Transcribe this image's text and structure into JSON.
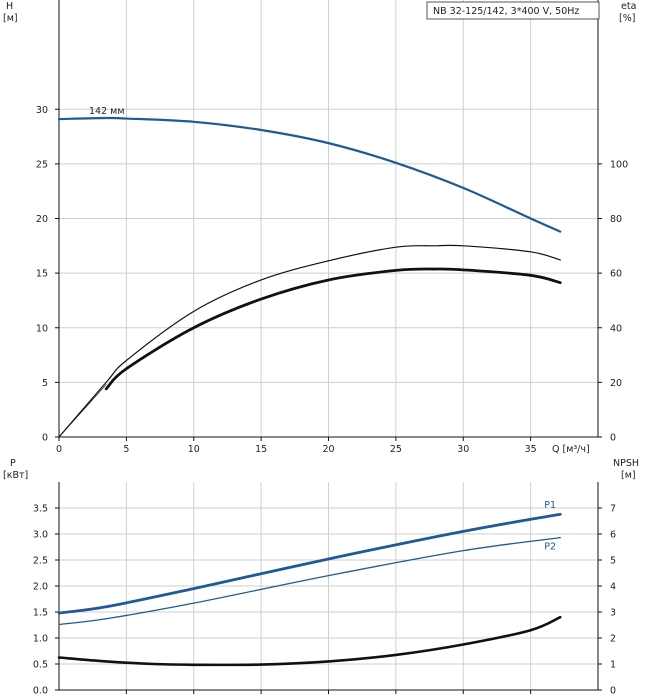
{
  "chart_data": [
    {
      "type": "line",
      "title": "NB 32-125/142, 3*400 V, 50Hz",
      "xlabel": "Q [м³/ч]",
      "xlim": [
        0,
        40
      ],
      "x_ticks": [
        "0",
        "5",
        "10",
        "15",
        "20",
        "25",
        "30",
        "35"
      ],
      "y_left": {
        "label_line1": "H",
        "label_line2": "[м]",
        "lim": [
          0,
          40
        ],
        "ticks": [
          "0",
          "5",
          "10",
          "15",
          "20",
          "25",
          "30"
        ]
      },
      "y_right": {
        "label_line1": "eta",
        "label_line2": "[%]",
        "lim": [
          0,
          160
        ],
        "ticks": [
          "0",
          "20",
          "40",
          "60",
          "80",
          "100"
        ]
      },
      "grid": true,
      "series": [
        {
          "name": "142 мм",
          "axis": "left",
          "color": "#1f5a94",
          "x": [
            0,
            3.5,
            5,
            10,
            15,
            20,
            25,
            30,
            35,
            37.2
          ],
          "y": [
            29.1,
            29.2,
            29.15,
            28.85,
            28.1,
            26.9,
            25.1,
            22.8,
            20.0,
            18.8
          ]
        },
        {
          "name": "",
          "axis": "right",
          "color": "#111111",
          "x": [
            0,
            3.5,
            5,
            10,
            15,
            20,
            25,
            28,
            30,
            35,
            37.2
          ],
          "y": [
            0,
            20,
            28,
            46,
            57.5,
            64.5,
            69.5,
            70,
            70,
            67.8,
            64.8
          ]
        },
        {
          "name": "",
          "axis": "right",
          "color": "#111111",
          "x": [
            3.5,
            5,
            10,
            15,
            20,
            25,
            28,
            30,
            35,
            37.2
          ],
          "y": [
            17.6,
            25,
            40,
            50.5,
            57.5,
            61,
            61.5,
            61.2,
            59.2,
            56.5
          ]
        },
        {
          "name": "",
          "axis": "right",
          "color": "#111111",
          "x": [
            0,
            1,
            2,
            3.5
          ],
          "y": [
            0,
            5.5,
            11,
            19.2
          ]
        }
      ]
    },
    {
      "type": "line",
      "xlim": [
        0,
        40
      ],
      "y_left": {
        "label_line1": "P",
        "label_line2": "[кВт]",
        "lim": [
          0,
          4
        ],
        "ticks": [
          "0.0",
          "0.5",
          "1.0",
          "1.5",
          "2.0",
          "2.5",
          "3.0",
          "3.5"
        ]
      },
      "y_right": {
        "label_line1": "NPSH",
        "label_line2": "[м]",
        "lim": [
          0,
          8
        ],
        "ticks": [
          "0",
          "1",
          "2",
          "3",
          "4",
          "5",
          "6",
          "7"
        ]
      },
      "grid": true,
      "series": [
        {
          "name": "P1",
          "axis": "left",
          "color": "#1f5a94",
          "x": [
            0,
            3.5,
            10,
            20,
            30,
            37.2
          ],
          "y": [
            1.48,
            1.6,
            1.95,
            2.52,
            3.05,
            3.38
          ]
        },
        {
          "name": "P2",
          "axis": "left",
          "color": "#1f5a94",
          "x": [
            0,
            3.5,
            10,
            20,
            30,
            37.2
          ],
          "y": [
            1.26,
            1.37,
            1.67,
            2.2,
            2.68,
            2.93
          ]
        },
        {
          "name": "",
          "axis": "right",
          "color": "#111111",
          "x": [
            0,
            3.5,
            7,
            10,
            15,
            20,
            25,
            30,
            35,
            37.2
          ],
          "y": [
            1.25,
            1.1,
            1.0,
            0.97,
            0.98,
            1.1,
            1.35,
            1.75,
            2.3,
            2.8
          ]
        }
      ]
    }
  ]
}
